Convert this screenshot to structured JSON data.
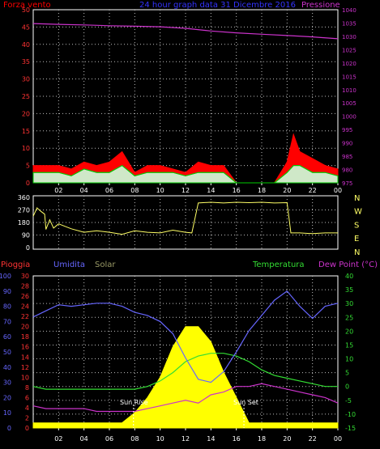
{
  "header": {
    "left_label": "Forza vento",
    "title": "24 hour graph data   31 Dicembre 2016",
    "right_label": "Pressione"
  },
  "panel_bottom_header": {
    "rain": "Pioggia",
    "humidity": "Umidita",
    "solar": "Solar",
    "temperature": "Temperatura",
    "dewpoint": "Dew Point (°C)"
  },
  "annotations": {
    "sunrise": "Sun Rise",
    "sunset": "Sun Set"
  },
  "colors": {
    "wind": "#ff0000",
    "gust": "#ffffff",
    "avg_wind": "#00cc00",
    "pressure": "#cc33cc",
    "direction": "#ffff66",
    "rain_axis": "#ff3333",
    "humidity": "#6666ff",
    "solar": "#ffff00",
    "solar_label": "#999966",
    "temperature": "#33dd33",
    "dewpoint": "#cc33cc",
    "grid": "#bdbdbd"
  },
  "chart_data": [
    {
      "type": "area",
      "name": "wind_pressure",
      "x_ticks": [
        "02",
        "04",
        "06",
        "08",
        "10",
        "12",
        "14",
        "16",
        "18",
        "20",
        "22",
        "00"
      ],
      "left_axis": {
        "label": "Forza vento",
        "range": [
          0,
          50
        ],
        "ticks": [
          0,
          5,
          10,
          15,
          20,
          25,
          30,
          35,
          40,
          45,
          50
        ]
      },
      "right_axis": {
        "label": "Pressione",
        "range": [
          975,
          1040
        ],
        "ticks": [
          975,
          980,
          985,
          990,
          995,
          1000,
          1005,
          1010,
          1015,
          1020,
          1025,
          1030,
          1035,
          1040
        ]
      },
      "pressure": {
        "x": [
          0,
          2,
          4,
          6,
          8,
          10,
          12,
          14,
          16,
          18,
          20,
          22,
          24
        ],
        "y": [
          1034.8,
          1034.5,
          1034.3,
          1034.0,
          1033.8,
          1033.6,
          1033.0,
          1032.0,
          1031.3,
          1030.8,
          1030.3,
          1029.8,
          1029.1
        ]
      },
      "wind_gust": {
        "x": [
          0,
          1,
          2,
          3,
          4,
          5,
          6,
          7,
          8,
          9,
          10,
          11,
          12,
          13,
          14,
          15,
          16,
          17,
          18,
          19,
          20,
          20.5,
          21,
          22,
          23,
          24
        ],
        "y": [
          5,
          5,
          5,
          4,
          6,
          5,
          6,
          9,
          3,
          5,
          5,
          4,
          3,
          6,
          5,
          5,
          0,
          0,
          0,
          0,
          6,
          14,
          9,
          7,
          5,
          4
        ]
      },
      "wind_speed": {
        "x": [
          0,
          1,
          2,
          3,
          4,
          5,
          6,
          7,
          8,
          9,
          10,
          11,
          12,
          13,
          14,
          15,
          16,
          17,
          18,
          19,
          20,
          20.5,
          21,
          22,
          23,
          24
        ],
        "y": [
          3,
          3,
          3,
          2,
          4,
          3,
          3,
          5,
          2,
          3,
          3,
          3,
          2,
          3,
          3,
          3,
          0,
          0,
          0,
          0,
          3,
          5,
          5,
          3,
          3,
          2
        ]
      }
    },
    {
      "type": "line",
      "name": "wind_direction",
      "left_axis": {
        "range": [
          0,
          360
        ],
        "ticks": [
          0,
          90,
          180,
          270,
          360
        ]
      },
      "right_labels": [
        "N",
        "W",
        "S",
        "E",
        "N"
      ],
      "x": [
        0,
        0.3,
        0.6,
        0.9,
        1,
        1.3,
        1.6,
        2,
        3,
        4,
        5,
        6,
        7,
        8,
        9,
        10,
        11,
        12,
        12.5,
        13,
        14,
        15,
        16,
        17,
        18,
        19,
        20,
        20.3,
        21,
        22,
        23,
        24
      ],
      "y": [
        225,
        285,
        260,
        240,
        130,
        200,
        140,
        170,
        135,
        110,
        120,
        110,
        95,
        120,
        110,
        105,
        125,
        110,
        105,
        320,
        325,
        320,
        325,
        322,
        325,
        320,
        322,
        105,
        105,
        100,
        105,
        105
      ]
    },
    {
      "type": "line",
      "name": "weather",
      "rain_axis": {
        "label": "Pioggia",
        "range": [
          0,
          30
        ],
        "ticks": [
          0,
          2,
          4,
          6,
          8,
          10,
          12,
          14,
          16,
          18,
          20,
          22,
          24,
          26,
          28,
          30
        ]
      },
      "humidity_axis": {
        "label": "Umidita",
        "range": [
          0,
          100
        ],
        "ticks": [
          0,
          10,
          20,
          30,
          40,
          50,
          60,
          70,
          80,
          90,
          100
        ]
      },
      "temp_axis": {
        "label": "Temperatura",
        "range": [
          -15,
          40
        ],
        "ticks": [
          -15,
          -10,
          -5,
          0,
          5,
          10,
          15,
          20,
          25,
          30,
          35,
          40
        ]
      },
      "humidity": {
        "x": [
          0,
          1,
          2,
          3,
          4,
          5,
          6,
          7,
          8,
          9,
          10,
          11,
          12,
          13,
          14,
          15,
          16,
          17,
          18,
          19,
          20,
          21,
          22,
          23,
          24
        ],
        "y": [
          73,
          77,
          81,
          80,
          81,
          82,
          82,
          80,
          76,
          74,
          70,
          62,
          46,
          32,
          30,
          37,
          50,
          64,
          74,
          84,
          90,
          80,
          72,
          80,
          82
        ]
      },
      "temperature": {
        "x": [
          0,
          1,
          2,
          3,
          4,
          5,
          6,
          7,
          8,
          9,
          10,
          11,
          12,
          13,
          14,
          15,
          16,
          17,
          18,
          19,
          20,
          21,
          22,
          23,
          24
        ],
        "y": [
          0,
          -1,
          -1,
          -1,
          -1,
          -1,
          -1,
          -1,
          -1,
          0,
          2,
          5,
          9,
          11,
          12,
          12,
          11,
          9,
          6,
          4,
          3,
          2,
          1,
          0,
          0
        ]
      },
      "dewpoint": {
        "x": [
          0,
          1,
          2,
          3,
          4,
          5,
          6,
          7,
          8,
          9,
          10,
          11,
          12,
          13,
          14,
          15,
          16,
          17,
          18,
          19,
          20,
          21,
          22,
          23,
          24
        ],
        "y": [
          -7,
          -8,
          -8,
          -8,
          -8,
          -9,
          -9,
          -9,
          -9,
          -8,
          -7,
          -6,
          -5,
          -6,
          -3,
          -2,
          0,
          0,
          1,
          0,
          -1,
          -2,
          -3,
          -4,
          -6
        ]
      },
      "solar": {
        "x": [
          0,
          7,
          8,
          9,
          10,
          11,
          12,
          13,
          14,
          15,
          16,
          17,
          24
        ],
        "y": [
          1,
          1,
          3,
          6,
          10,
          16,
          20,
          20,
          17,
          11,
          6,
          1,
          1
        ]
      }
    }
  ]
}
